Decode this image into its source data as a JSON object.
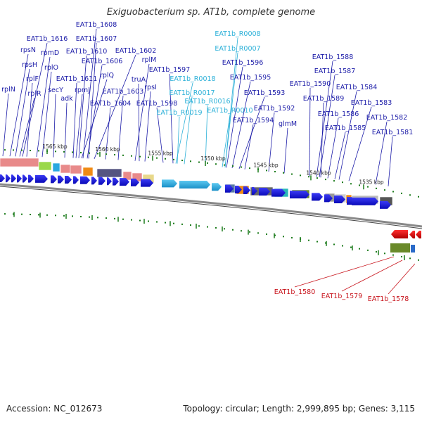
{
  "title": "Exiguobacterium sp. AT1b, complete genome",
  "footer": {
    "accession": "Accession: NC_012673",
    "summary": "Topology: circular; Length: 2,999,895 bp; Genes: 3,115"
  },
  "kbp_ticks": [
    "1565 kbp",
    "1560 kbp",
    "1555 kbp",
    "1550 kbp",
    "1545 kbp",
    "1540 kbp",
    "1535 kbp"
  ],
  "gene_labels": [
    {
      "text": "EAT1b_1608",
      "type": "gene"
    },
    {
      "text": "EAT1b_1616",
      "type": "gene"
    },
    {
      "text": "EAT1b_1607",
      "type": "gene"
    },
    {
      "text": "rpsN",
      "type": "gene"
    },
    {
      "text": "rpmD",
      "type": "gene"
    },
    {
      "text": "EAT1b_1610",
      "type": "gene"
    },
    {
      "text": "EAT1b_1602",
      "type": "gene"
    },
    {
      "text": "rpsH",
      "type": "gene"
    },
    {
      "text": "EAT1b_1606",
      "type": "gene"
    },
    {
      "text": "rplM",
      "type": "gene"
    },
    {
      "text": "rplO",
      "type": "gene"
    },
    {
      "text": "EAT1b_1597",
      "type": "gene"
    },
    {
      "text": "rplQ",
      "type": "gene"
    },
    {
      "text": "rplF",
      "type": "gene"
    },
    {
      "text": "EAT1b_1611",
      "type": "gene"
    },
    {
      "text": "truA",
      "type": "gene"
    },
    {
      "text": "EAT1b_R0018",
      "type": "rna"
    },
    {
      "text": "rpsI",
      "type": "gene"
    },
    {
      "text": "secY",
      "type": "gene"
    },
    {
      "text": "rpmJ",
      "type": "gene"
    },
    {
      "text": "rplN",
      "type": "gene"
    },
    {
      "text": "rplR",
      "type": "gene"
    },
    {
      "text": "EAT1b_1603",
      "type": "gene"
    },
    {
      "text": "EAT1b_R0017",
      "type": "rna"
    },
    {
      "text": "adk",
      "type": "gene"
    },
    {
      "text": "EAT1b_1598",
      "type": "gene"
    },
    {
      "text": "EAT1b_1604",
      "type": "gene"
    },
    {
      "text": "EAT1b_R0019",
      "type": "rna"
    },
    {
      "text": "EAT1b_R0008",
      "type": "rna"
    },
    {
      "text": "EAT1b_R0007",
      "type": "rna"
    },
    {
      "text": "EAT1b_1596",
      "type": "gene"
    },
    {
      "text": "EAT1b_1595",
      "type": "gene"
    },
    {
      "text": "EAT1b_1593",
      "type": "gene"
    },
    {
      "text": "EAT1b_R0016",
      "type": "rna"
    },
    {
      "text": "EAT1b_R0010",
      "type": "rna"
    },
    {
      "text": "EAT1b_1592",
      "type": "gene"
    },
    {
      "text": "EAT1b_1594",
      "type": "gene"
    },
    {
      "text": "glmM",
      "type": "gene"
    },
    {
      "text": "EAT1b_1588",
      "type": "gene"
    },
    {
      "text": "EAT1b_1587",
      "type": "gene"
    },
    {
      "text": "EAT1b_1590",
      "type": "gene"
    },
    {
      "text": "EAT1b_1584",
      "type": "gene"
    },
    {
      "text": "EAT1b_1589",
      "type": "gene"
    },
    {
      "text": "EAT1b_1583",
      "type": "gene"
    },
    {
      "text": "EAT1b_1586",
      "type": "gene"
    },
    {
      "text": "EAT1b_1582",
      "type": "gene"
    },
    {
      "text": "EAT1b_1585",
      "type": "gene"
    },
    {
      "text": "EAT1b_1581",
      "type": "gene"
    },
    {
      "text": "EAT1b_1580",
      "type": "red"
    },
    {
      "text": "EAT1b_1579",
      "type": "red"
    },
    {
      "text": "EAT1b_1578",
      "type": "red"
    }
  ],
  "colors": {
    "gene_label": "#1c1ca8",
    "rna_label": "#2bb0d8",
    "red_label": "#c8141c",
    "cds_blue": "#1a1ae0",
    "rna_cyan": "#2aa8e0",
    "backbone_gray": "#7a7a7a"
  }
}
